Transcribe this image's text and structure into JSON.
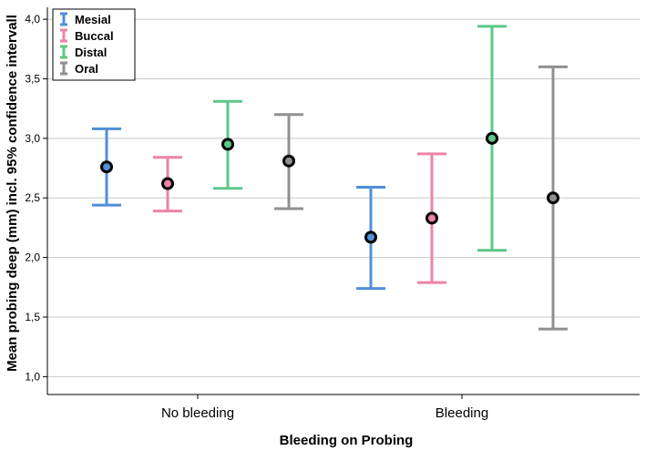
{
  "chart_data": {
    "type": "errorbar",
    "xlabel": "Bleeding on Probing",
    "ylabel": "Mean probing deep (mm) incl. 95% confidence intervall",
    "categories": [
      "No bleeding",
      "Bleeding"
    ],
    "ylim": [
      0.85,
      4.1
    ],
    "yticks": [
      "1,0",
      "1,5",
      "2,0",
      "2,5",
      "3,0",
      "3,5",
      "4,0"
    ],
    "ytick_values": [
      1.0,
      1.5,
      2.0,
      2.5,
      3.0,
      3.5,
      4.0
    ],
    "grid": "horizontal",
    "legend_position": "top-left",
    "series": [
      {
        "name": "Mesial",
        "color": "#4f8fd8",
        "means": [
          2.76,
          2.17
        ],
        "lower": [
          2.44,
          1.74
        ],
        "upper": [
          3.08,
          2.59
        ]
      },
      {
        "name": "Buccal",
        "color": "#ee82a8",
        "means": [
          2.62,
          2.33
        ],
        "lower": [
          2.39,
          1.79
        ],
        "upper": [
          2.84,
          2.87
        ]
      },
      {
        "name": "Distal",
        "color": "#5cc88a",
        "means": [
          2.95,
          3.0
        ],
        "lower": [
          2.58,
          2.06
        ],
        "upper": [
          3.31,
          3.94
        ]
      },
      {
        "name": "Oral",
        "color": "#909090",
        "means": [
          2.81,
          2.5
        ],
        "lower": [
          2.41,
          1.4
        ],
        "upper": [
          3.2,
          3.6
        ]
      }
    ]
  }
}
